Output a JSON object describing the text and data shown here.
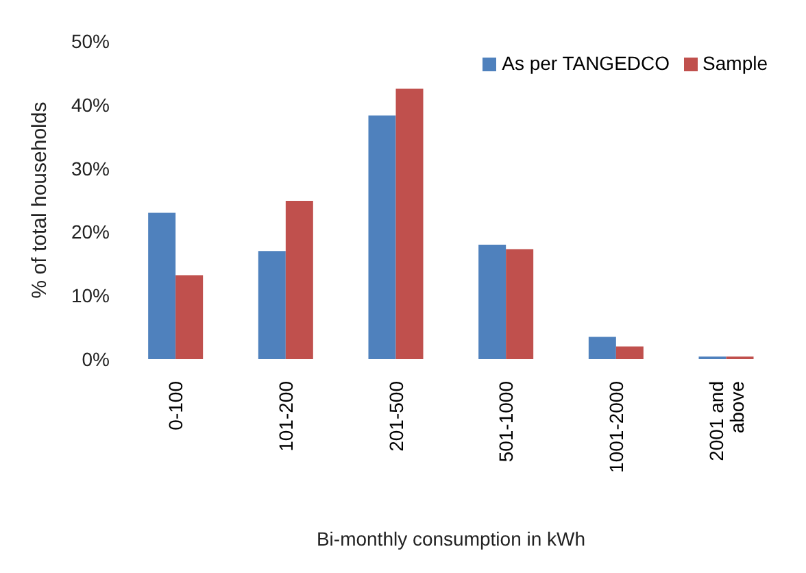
{
  "chart_data": {
    "type": "bar",
    "xlabel": "Bi-monthly consumption  in kWh",
    "ylabel": "% of total households",
    "categories": [
      "0-100",
      "101-200",
      "201-500",
      "501-1000",
      "1001-2000",
      "2001 and above"
    ],
    "series": [
      {
        "name": "As per TANGEDCO",
        "color": "#4f81bd",
        "values": [
          23.0,
          17.0,
          38.3,
          18.0,
          3.5,
          0.4
        ]
      },
      {
        "name": "Sample",
        "color": "#c0504d",
        "values": [
          13.2,
          24.9,
          42.5,
          17.3,
          2.0,
          0.4
        ]
      }
    ],
    "ylim": [
      0,
      50
    ],
    "yticks": [
      {
        "value": 0,
        "label": "0%"
      },
      {
        "value": 10,
        "label": "10%"
      },
      {
        "value": 20,
        "label": "20%"
      },
      {
        "value": 30,
        "label": "30%"
      },
      {
        "value": 40,
        "label": "40%"
      },
      {
        "value": 50,
        "label": "50%"
      }
    ],
    "grid": false,
    "legend": "top right"
  }
}
